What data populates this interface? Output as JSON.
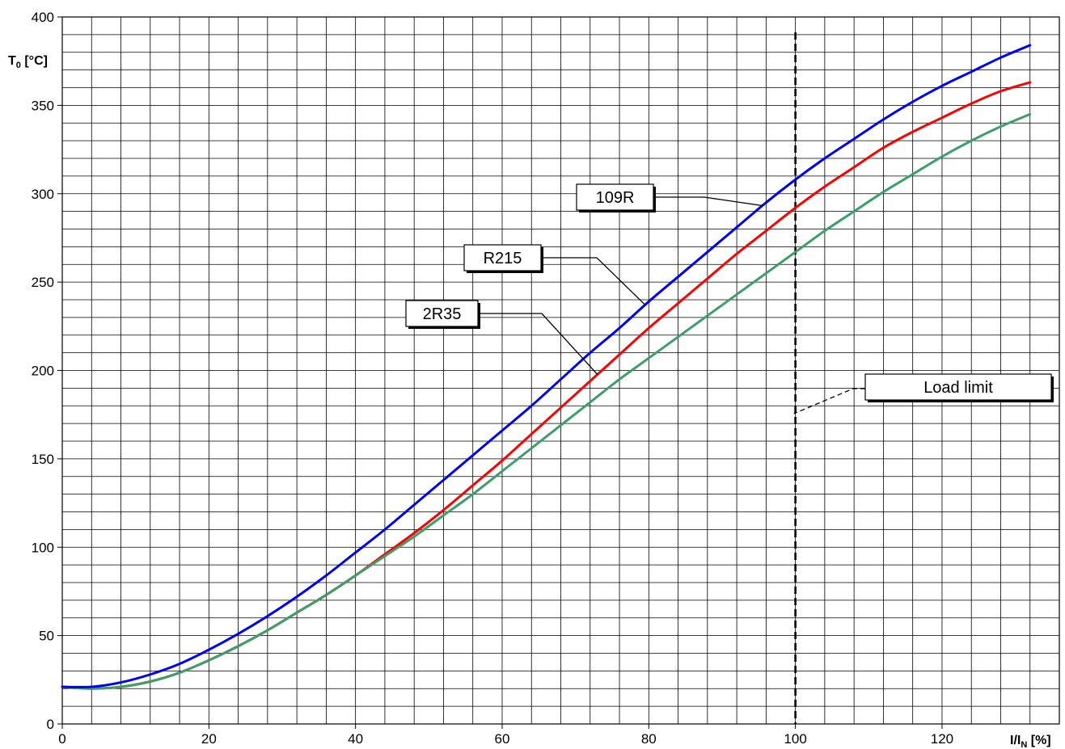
{
  "chart_data": {
    "type": "line",
    "title": "",
    "ylabel": "T",
    "ylabel_sub": "0",
    "ylabel_unit": " [°C]",
    "xlabel": "I/I",
    "xlabel_sub": "N",
    "xlabel_unit": " [%]",
    "xlim": [
      0,
      136
    ],
    "ylim": [
      0,
      400
    ],
    "xticks": [
      0,
      20,
      40,
      60,
      80,
      100,
      120
    ],
    "yticks": [
      0,
      50,
      100,
      150,
      200,
      250,
      300,
      350,
      400
    ],
    "grid": true,
    "legend": "callouts",
    "series": [
      {
        "name": "109R",
        "color": "#0000ff",
        "x": [
          0,
          4,
          8,
          12,
          16,
          20,
          24,
          28,
          32,
          36,
          40,
          44,
          48,
          52,
          56,
          60,
          64,
          68,
          72,
          76,
          80,
          84,
          88,
          92,
          96,
          100,
          104,
          108,
          112,
          116,
          120,
          124,
          128,
          132
        ],
        "y": [
          21,
          21,
          23.5,
          28,
          34,
          42,
          51,
          61,
          72,
          84,
          97,
          110,
          124,
          138,
          152,
          166,
          180,
          195,
          210,
          224,
          239,
          253,
          267,
          281,
          295,
          308,
          320,
          331,
          342,
          352,
          361,
          369,
          377,
          384
        ]
      },
      {
        "name": "R215",
        "color": "#ff0000",
        "x": [
          0,
          4,
          8,
          12,
          16,
          20,
          24,
          28,
          32,
          36,
          40,
          44,
          48,
          52,
          56,
          60,
          64,
          68,
          72,
          76,
          80,
          84,
          88,
          92,
          96,
          100,
          104,
          108,
          112,
          116,
          120,
          124,
          128,
          132
        ],
        "y": [
          21,
          20,
          21,
          24,
          29,
          36,
          44,
          53,
          63,
          73,
          84,
          96,
          108,
          121,
          135,
          149,
          164,
          179,
          194,
          209,
          224,
          238,
          252,
          266,
          279,
          292,
          304,
          315,
          326,
          335,
          343,
          351,
          358,
          363
        ]
      },
      {
        "name": "2R35",
        "color": "#3c9f6a",
        "x": [
          0,
          4,
          8,
          12,
          16,
          20,
          24,
          28,
          32,
          36,
          40,
          44,
          48,
          52,
          56,
          60,
          64,
          68,
          72,
          76,
          80,
          84,
          88,
          92,
          96,
          100,
          104,
          108,
          112,
          116,
          120,
          124,
          128,
          132
        ],
        "y": [
          21,
          20,
          21,
          24,
          29,
          36,
          44,
          53,
          63,
          73,
          84,
          95,
          106,
          118,
          130,
          143,
          156,
          169,
          182,
          195,
          207,
          219,
          231,
          243,
          255,
          267,
          279,
          290,
          301,
          311,
          321,
          330,
          338,
          345
        ]
      }
    ],
    "load_limit": {
      "x": 100
    },
    "annotations": [
      {
        "label": "109R",
        "target_series": 0,
        "target_x": 95.5
      },
      {
        "label": "R215",
        "target_series": 0,
        "target_x": 79.5
      },
      {
        "label": "2R35",
        "target_series": 1,
        "target_x": 73
      },
      {
        "label": "Load limit",
        "target_series": -1,
        "target_x": 100
      }
    ]
  }
}
